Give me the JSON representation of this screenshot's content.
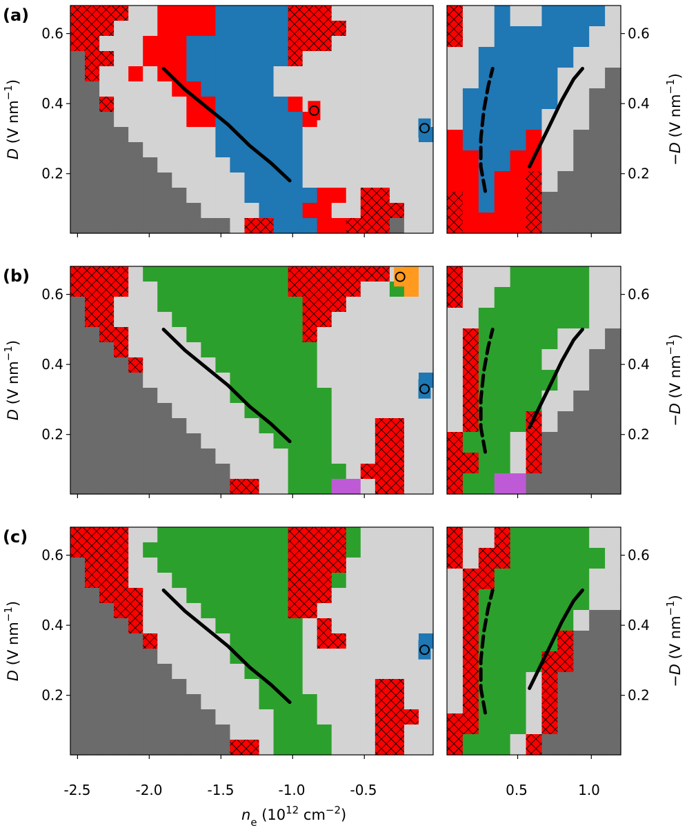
{
  "colors": {
    "gap": "#6b6b6b",
    "none": "#d3d3d3",
    "blue": "#1f77b4",
    "red": "#ff0000",
    "green": "#2ca02c",
    "orange": "#ff9a1f",
    "purple": "#bf5ad6",
    "line": "#000000"
  },
  "legend_note": "gap = dark grey, none = light grey, blue / red / green / orange / purple = phase regions, hatched = red with cross-hatch",
  "chart_data": {
    "type": "heatmap",
    "x_ticks_left": [
      "-2.5",
      "-2.0",
      "-1.5",
      "-1.0",
      "-0.5"
    ],
    "x_ticks_right": [
      "0.5",
      "1.0"
    ],
    "y_ticks_left": [
      "0.2",
      "0.4",
      "0.6"
    ],
    "y_ticks_right": [
      "0.2",
      "0.4",
      "0.6"
    ],
    "xlabel_left": "n",
    "xlabel_sub": "e",
    "xlabel_rest": " (10",
    "xlabel_exp": "12",
    "xlabel_unit": " cm",
    "xlabel_unit_exp": "−2",
    "xlabel_close": ")",
    "ylabel_left": "D",
    "ylabel_left_rest": " (V nm",
    "ylabel_left_exp": "−1",
    "ylabel_left_close": ")",
    "ylabel_right": "−D",
    "ylabel_right_rest": " (V nm",
    "ylabel_right_exp": "−1",
    "ylabel_right_close": ")",
    "xlim_left": [
      -2.55,
      -0.02
    ],
    "xlim_right": [
      0.02,
      1.2
    ],
    "ylim": [
      0.03,
      0.68
    ],
    "panels": [
      {
        "label": "(a)",
        "boundary_left": [
          [
            -1.9,
            0.5
          ],
          [
            -1.75,
            0.44
          ],
          [
            -1.6,
            0.39
          ],
          [
            -1.45,
            0.34
          ],
          [
            -1.3,
            0.28
          ],
          [
            -1.15,
            0.23
          ],
          [
            -1.02,
            0.18
          ]
        ],
        "boundary_right_solid": [
          [
            0.58,
            0.22
          ],
          [
            0.65,
            0.28
          ],
          [
            0.72,
            0.34
          ],
          [
            0.8,
            0.41
          ],
          [
            0.88,
            0.47
          ],
          [
            0.94,
            0.5
          ]
        ],
        "boundary_right_dashed": [
          [
            0.28,
            0.15
          ],
          [
            0.25,
            0.22
          ],
          [
            0.25,
            0.3
          ],
          [
            0.27,
            0.38
          ],
          [
            0.3,
            0.45
          ],
          [
            0.33,
            0.5
          ]
        ],
        "markers": [
          {
            "x": -0.08,
            "y": 0.33,
            "color": "blue"
          },
          {
            "x": -0.85,
            "y": 0.38,
            "color": "red"
          }
        ]
      },
      {
        "label": "(b)",
        "boundary_left": [
          [
            -1.9,
            0.5
          ],
          [
            -1.75,
            0.44
          ],
          [
            -1.6,
            0.39
          ],
          [
            -1.45,
            0.34
          ],
          [
            -1.3,
            0.28
          ],
          [
            -1.15,
            0.23
          ],
          [
            -1.02,
            0.18
          ]
        ],
        "boundary_right_solid": [
          [
            0.58,
            0.22
          ],
          [
            0.65,
            0.28
          ],
          [
            0.72,
            0.34
          ],
          [
            0.8,
            0.41
          ],
          [
            0.88,
            0.47
          ],
          [
            0.94,
            0.5
          ]
        ],
        "boundary_right_dashed": [
          [
            0.28,
            0.15
          ],
          [
            0.25,
            0.22
          ],
          [
            0.25,
            0.3
          ],
          [
            0.27,
            0.38
          ],
          [
            0.3,
            0.45
          ],
          [
            0.33,
            0.5
          ]
        ],
        "markers": [
          {
            "x": -0.08,
            "y": 0.33,
            "color": "blue"
          },
          {
            "x": -0.25,
            "y": 0.65,
            "color": "orange"
          }
        ]
      },
      {
        "label": "(c)",
        "boundary_left": [
          [
            -1.9,
            0.5
          ],
          [
            -1.75,
            0.44
          ],
          [
            -1.6,
            0.39
          ],
          [
            -1.45,
            0.34
          ],
          [
            -1.3,
            0.28
          ],
          [
            -1.15,
            0.23
          ],
          [
            -1.02,
            0.18
          ]
        ],
        "boundary_right_solid": [
          [
            0.58,
            0.22
          ],
          [
            0.65,
            0.28
          ],
          [
            0.72,
            0.34
          ],
          [
            0.8,
            0.41
          ],
          [
            0.88,
            0.47
          ],
          [
            0.94,
            0.5
          ]
        ],
        "boundary_right_dashed": [
          [
            0.28,
            0.15
          ],
          [
            0.25,
            0.22
          ],
          [
            0.25,
            0.3
          ],
          [
            0.27,
            0.38
          ],
          [
            0.3,
            0.45
          ],
          [
            0.33,
            0.5
          ]
        ],
        "markers": [
          {
            "x": -0.08,
            "y": 0.33,
            "color": "blue"
          }
        ]
      }
    ]
  }
}
